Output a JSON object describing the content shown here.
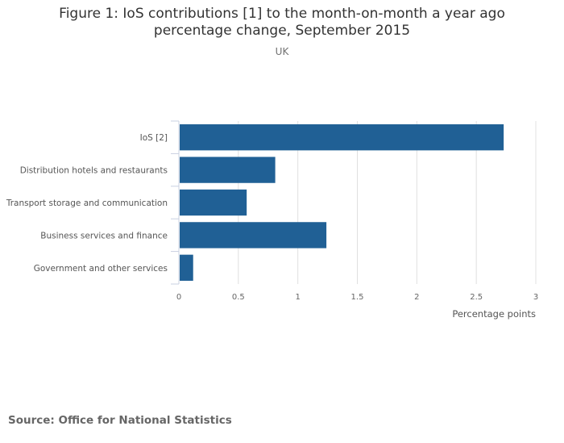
{
  "chart_data": {
    "type": "bar",
    "orientation": "horizontal",
    "title": "Figure 1: IoS contributions [1] to the month-on-month a year ago percentage change, September 2015",
    "title_lines": [
      "Figure 1: IoS contributions [1] to the month-on-month a year ago",
      "percentage change, September 2015"
    ],
    "subtitle": "UK",
    "categories": [
      "IoS [2]",
      "Distribution hotels and restaurants",
      "Transport storage and communication",
      "Business services and finance",
      "Government and other services"
    ],
    "values": [
      2.73,
      0.81,
      0.57,
      1.24,
      0.12
    ],
    "xlabel": "Percentage points",
    "ylabel": "",
    "xlim": [
      0,
      3
    ],
    "ticks": [
      0,
      0.5,
      1,
      1.5,
      2,
      2.5,
      3
    ],
    "tick_labels": [
      "0",
      "0.5",
      "1",
      "1.5",
      "2",
      "2.5",
      "3"
    ],
    "grid": true,
    "legend": "none",
    "bar_color": "#206095",
    "source": "Source: Office for National Statistics"
  }
}
